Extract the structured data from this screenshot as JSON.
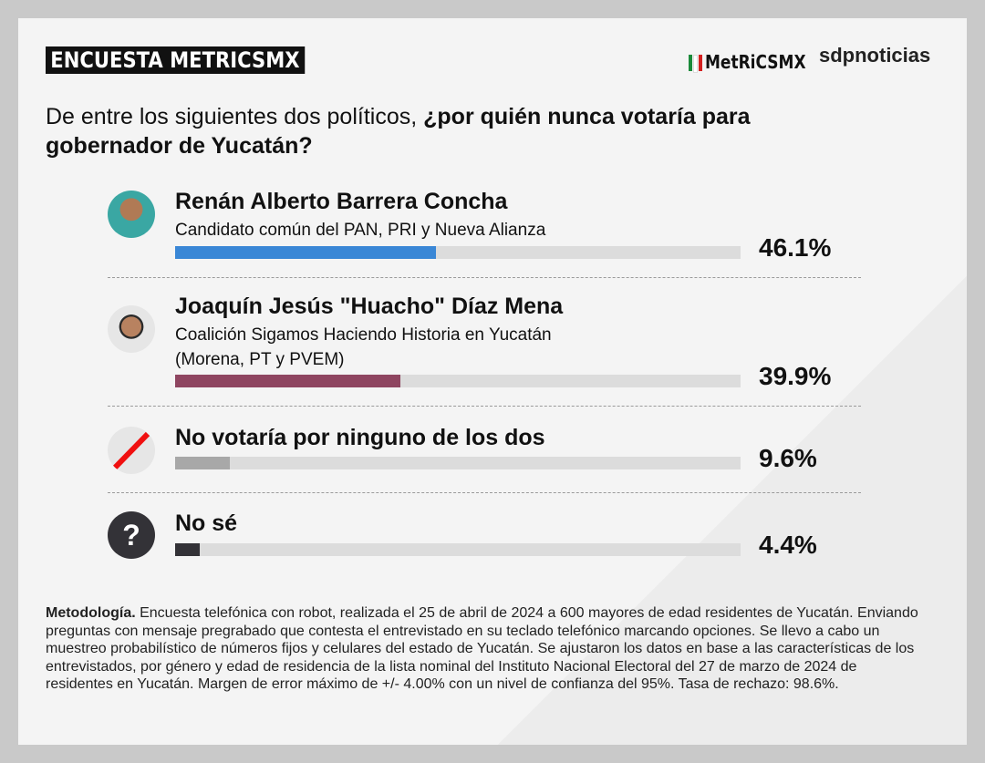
{
  "header": {
    "badge": "ENCUESTA METRICSMX",
    "logo_metrics": "MetRiCSMX",
    "logo_sdp": "sdpnoticias"
  },
  "question": {
    "plain": "De entre los siguientes dos políticos, ",
    "bold": "¿por quién nunca votaría para gobernador de Yucatán?"
  },
  "colors": {
    "renan": "#3a87d6",
    "huacho": "#8e4560",
    "ninguno": "#a8a8a8",
    "nose": "#333237",
    "track": "#dcdcdc"
  },
  "chart_data": {
    "type": "bar",
    "title": "¿por quién nunca votaría para gobernador de Yucatán?",
    "categories": [
      "Renán Alberto Barrera Concha",
      "Joaquín Jesús \"Huacho\" Díaz Mena",
      "No votaría por ninguno de los dos",
      "No sé"
    ],
    "values": [
      46.1,
      39.9,
      9.6,
      4.4
    ],
    "ylim": [
      0,
      100
    ],
    "unit": "%"
  },
  "rows": [
    {
      "icon": "candidate-photo",
      "name": "Renán Alberto Barrera Concha",
      "sub1": "Candidato común del PAN, PRI y Nueva Alianza",
      "pct": "46.1%"
    },
    {
      "icon": "candidate-photo",
      "name": "Joaquín Jesús \"Huacho\" Díaz Mena",
      "sub1": "Coalición Sigamos Haciendo Historia en Yucatán",
      "sub2": "(Morena, PT y PVEM)",
      "pct": "39.9%"
    },
    {
      "icon": "slash-icon",
      "name": "No votaría por ninguno de los dos",
      "pct": "9.6%"
    },
    {
      "icon": "question-icon",
      "name": "No sé",
      "pct": "4.4%"
    }
  ],
  "methodology": {
    "label": "Metodología.",
    "text": " Encuesta telefónica con robot, realizada el 25 de abril de 2024 a 600 mayores de edad residentes de Yucatán. Enviando preguntas con mensaje pregrabado que contesta el entrevistado en su teclado telefónico marcando opciones. Se llevo a cabo un muestreo probabilístico de números fijos y celulares del estado de Yucatán. Se ajustaron los datos en base a las características de los entrevistados, por género y edad de residencia de la lista nominal del Instituto Nacional Electoral del 27 de marzo de 2024 de residentes en Yucatán. Margen de error máximo de +/- 4.00% con un nivel de confianza del 95%. Tasa de rechazo: 98.6%."
  }
}
